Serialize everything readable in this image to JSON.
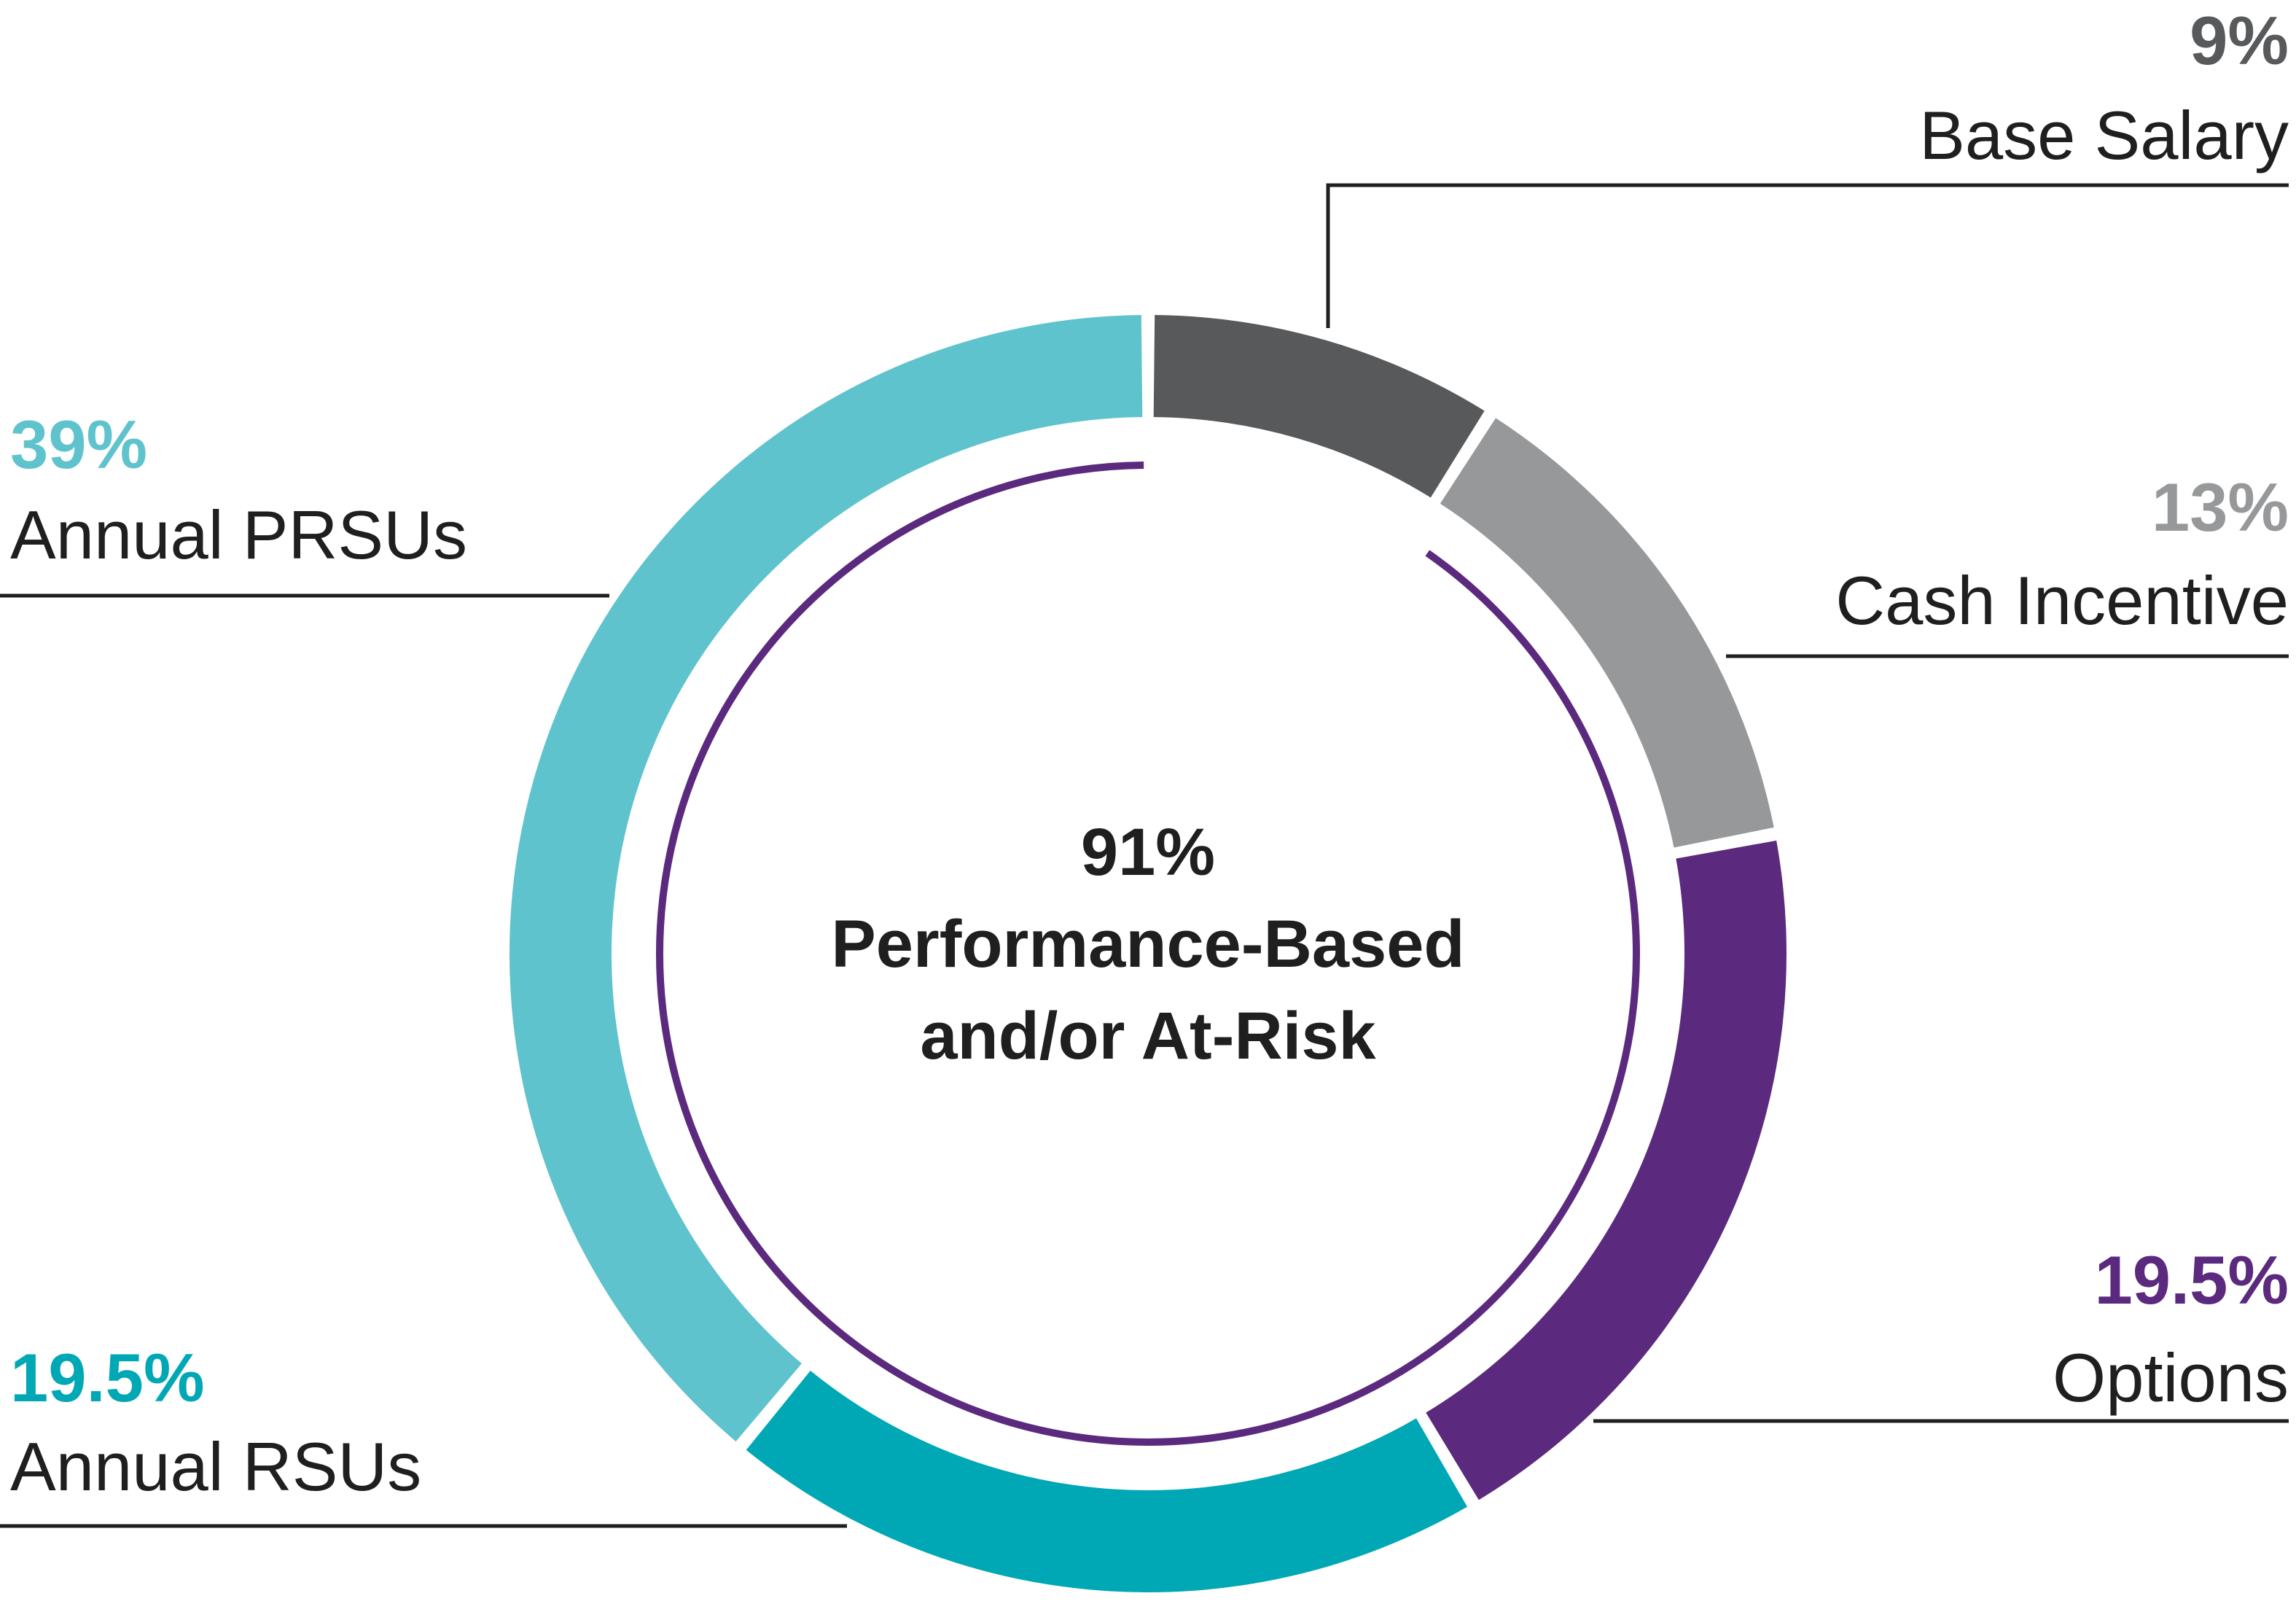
{
  "chart_data": {
    "type": "pie",
    "variant": "donut",
    "center_label": {
      "value": "91%",
      "line1": "Performance-Based",
      "line2": "and/or At-Risk"
    },
    "slices": [
      {
        "label": "Base Salary",
        "value": 9,
        "display": "9%",
        "color": "#58595b",
        "label_color": "#58595b"
      },
      {
        "label": "Cash Incentive",
        "value": 13,
        "display": "13%",
        "color": "#97989a",
        "label_color": "#97989a"
      },
      {
        "label": "Options",
        "value": 19.5,
        "display": "19.5%",
        "color": "#5b2a7e",
        "label_color": "#5b2a7e"
      },
      {
        "label": "Annual RSUs",
        "value": 19.5,
        "display": "19.5%",
        "color": "#00a8b5",
        "label_color": "#00a8b5"
      },
      {
        "label": "Annual PRSUs",
        "value": 39,
        "display": "39%",
        "color": "#5fc3cd",
        "label_color": "#5fc3cd"
      }
    ],
    "at_risk_arc": {
      "covers_percent": 91,
      "color": "#5b2a7e"
    }
  }
}
